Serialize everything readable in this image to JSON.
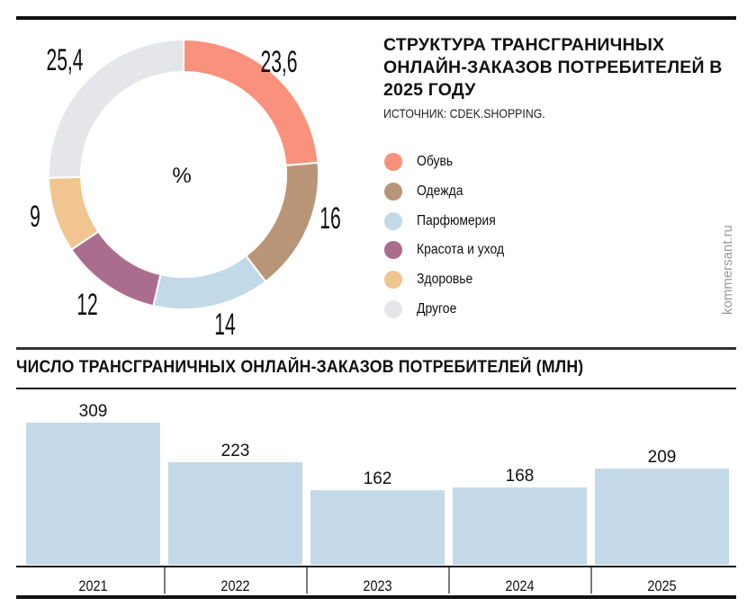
{
  "donut_title": "СТРУКТУРА ТРАНСГРАНИЧНЫХ ОНЛАЙН-ЗАКАЗОВ ПОТРЕБИТЕЛЕЙ В 2025 ГОДУ",
  "source": "ИСТОЧНИК: CDEK.SHOPPING.",
  "watermark": "kommersant.ru",
  "bar_title": "ЧИСЛО ТРАНСГРАНИЧНЫХ ОНЛАЙН-ЗАКАЗОВ ПОТРЕБИТЕЛЕЙ (МЛН)",
  "chart_data": [
    {
      "type": "pie",
      "title": "СТРУКТУРА ТРАНСГРАНИЧНЫХ ОНЛАЙН-ЗАКАЗОВ ПОТРЕБИТЕЛЕЙ В 2025 ГОДУ",
      "center_label": "%",
      "legend_position": "right",
      "slices": [
        {
          "name": "Обувь",
          "value": 23.6,
          "label": "23,6",
          "color": "#fa917c"
        },
        {
          "name": "Одежда",
          "value": 16,
          "label": "16",
          "color": "#b99577"
        },
        {
          "name": "Парфюмерия",
          "value": 14,
          "label": "14",
          "color": "#c2d9e8"
        },
        {
          "name": "Красота и уход",
          "value": 12,
          "label": "12",
          "color": "#ab6d8e"
        },
        {
          "name": "Здоровье",
          "value": 9,
          "label": "9",
          "color": "#f1c58f"
        },
        {
          "name": "Другое",
          "value": 25.4,
          "label": "25,4",
          "color": "#e4e6ea"
        }
      ]
    },
    {
      "type": "bar",
      "title": "ЧИСЛО ТРАНСГРАНИЧНЫХ ОНЛАЙН-ЗАКАЗОВ ПОТРЕБИТЕЛЕЙ (МЛН)",
      "categories": [
        "2021",
        "2022",
        "2023",
        "2024",
        "2025"
      ],
      "values": [
        309,
        223,
        162,
        168,
        209
      ],
      "bar_color": "#c4d9e7",
      "xlabel": "",
      "ylabel": "",
      "ylim": [
        0,
        309
      ],
      "grid": false
    }
  ]
}
